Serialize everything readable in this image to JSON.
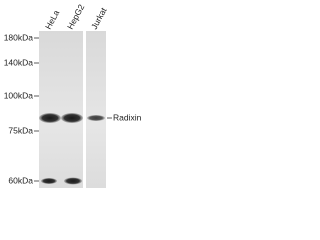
{
  "lanes": [
    "HeLa",
    "HepG2",
    "Jurkat"
  ],
  "markers": [
    "180kDa",
    "140kDa",
    "100kDa",
    "75kDa",
    "60kDa"
  ],
  "band_label": "Radixin"
}
